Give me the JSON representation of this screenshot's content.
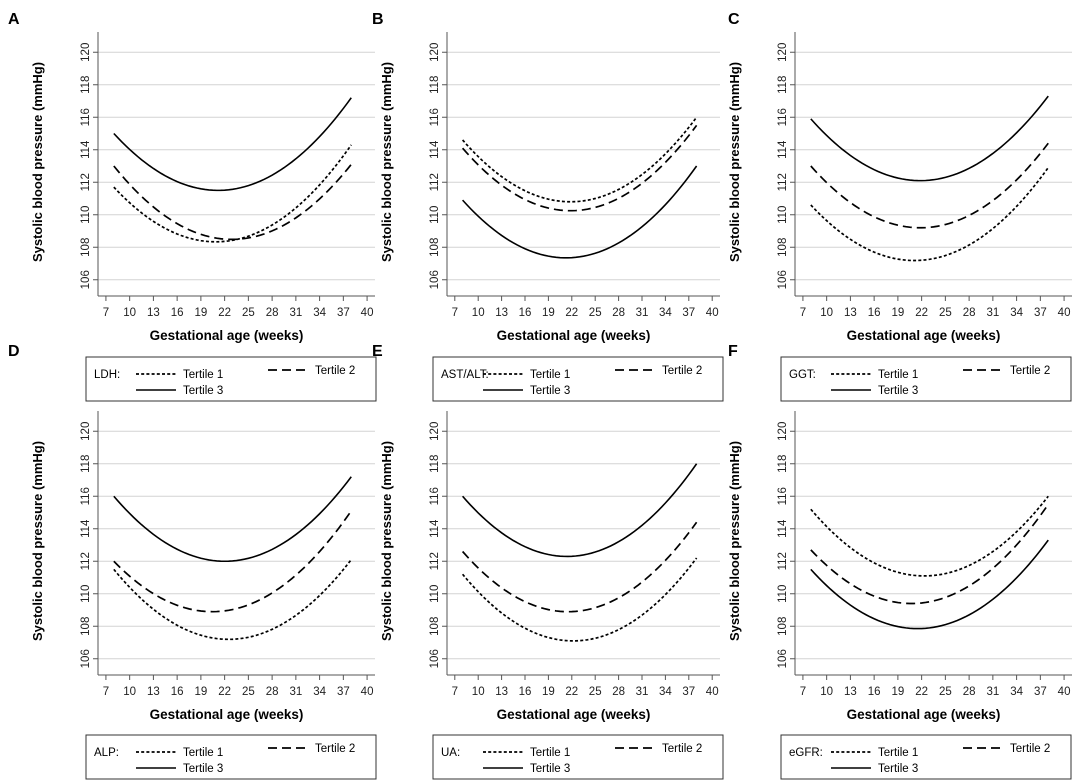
{
  "figure": {
    "ylabel": "Systolic blood pressure (mmHg)",
    "xlabel": "Gestational age (weeks)",
    "xticks": [
      7,
      10,
      13,
      16,
      19,
      22,
      25,
      28,
      31,
      34,
      37,
      40
    ],
    "yticks": [
      106,
      108,
      110,
      112,
      114,
      116,
      118,
      120
    ],
    "xlim": [
      6,
      41
    ],
    "ylim": [
      105,
      121
    ],
    "line_styles": {
      "Tertile 1": "dotted",
      "Tertile 2": "dashed",
      "Tertile 3": "solid"
    }
  },
  "chart_data": [
    {
      "type": "line",
      "panel": "A",
      "legend_title": "LDH:",
      "xlabel": "Gestational age (weeks)",
      "ylabel": "Systolic blood pressure (mmHg)",
      "series": [
        {
          "name": "Tertile 1",
          "style": "dotted",
          "x": [
            8,
            20,
            38
          ],
          "y": [
            111.7,
            108.35,
            114.3
          ]
        },
        {
          "name": "Tertile 2",
          "style": "dashed",
          "x": [
            8,
            22,
            38
          ],
          "y": [
            113.0,
            108.5,
            113.1
          ]
        },
        {
          "name": "Tertile 3",
          "style": "solid",
          "x": [
            8,
            21,
            38
          ],
          "y": [
            115.0,
            111.5,
            117.2
          ]
        }
      ]
    },
    {
      "type": "line",
      "panel": "B",
      "legend_title": "AST/ALT:",
      "xlabel": "Gestational age (weeks)",
      "ylabel": "Systolic blood pressure (mmHg)",
      "series": [
        {
          "name": "Tertile 1",
          "style": "dotted",
          "x": [
            8,
            22,
            38
          ],
          "y": [
            114.6,
            110.8,
            116.0
          ]
        },
        {
          "name": "Tertile 2",
          "style": "dashed",
          "x": [
            8,
            22,
            38
          ],
          "y": [
            114.1,
            110.25,
            115.5
          ]
        },
        {
          "name": "Tertile 3",
          "style": "solid",
          "x": [
            8,
            21,
            38
          ],
          "y": [
            110.9,
            107.35,
            113.0
          ]
        }
      ]
    },
    {
      "type": "line",
      "panel": "C",
      "legend_title": "GGT:",
      "xlabel": "Gestational age (weeks)",
      "ylabel": "Systolic blood pressure (mmHg)",
      "series": [
        {
          "name": "Tertile 1",
          "style": "dotted",
          "x": [
            8,
            22,
            38
          ],
          "y": [
            110.6,
            107.2,
            112.9
          ]
        },
        {
          "name": "Tertile 2",
          "style": "dashed",
          "x": [
            8,
            22,
            38
          ],
          "y": [
            113.0,
            109.2,
            114.4
          ]
        },
        {
          "name": "Tertile 3",
          "style": "solid",
          "x": [
            8,
            22,
            38
          ],
          "y": [
            115.9,
            112.1,
            117.3
          ]
        }
      ]
    },
    {
      "type": "line",
      "panel": "D",
      "legend_title": "ALP:",
      "xlabel": "Gestational age (weeks)",
      "ylabel": "Systolic blood pressure (mmHg)",
      "series": [
        {
          "name": "Tertile 1",
          "style": "dotted",
          "x": [
            8,
            22,
            38
          ],
          "y": [
            111.5,
            107.2,
            112.1
          ]
        },
        {
          "name": "Tertile 2",
          "style": "dashed",
          "x": [
            8,
            20,
            38
          ],
          "y": [
            112.0,
            108.9,
            115.1
          ]
        },
        {
          "name": "Tertile 3",
          "style": "solid",
          "x": [
            8,
            22,
            38
          ],
          "y": [
            116.0,
            112.0,
            117.2
          ]
        }
      ]
    },
    {
      "type": "line",
      "panel": "E",
      "legend_title": "UA:",
      "xlabel": "Gestational age (weeks)",
      "ylabel": "Systolic blood pressure (mmHg)",
      "series": [
        {
          "name": "Tertile 1",
          "style": "dotted",
          "x": [
            8,
            22,
            38
          ],
          "y": [
            111.2,
            107.1,
            112.2
          ]
        },
        {
          "name": "Tertile 2",
          "style": "dashed",
          "x": [
            8,
            22,
            38
          ],
          "y": [
            112.6,
            108.9,
            114.4
          ]
        },
        {
          "name": "Tertile 3",
          "style": "solid",
          "x": [
            8,
            21,
            38
          ],
          "y": [
            116.0,
            112.3,
            118.0
          ]
        }
      ]
    },
    {
      "type": "line",
      "panel": "F",
      "legend_title": "eGFR:",
      "xlabel": "Gestational age (weeks)",
      "ylabel": "Systolic blood pressure (mmHg)",
      "series": [
        {
          "name": "Tertile 1",
          "style": "dotted",
          "x": [
            8,
            22,
            38
          ],
          "y": [
            115.2,
            111.1,
            116.0
          ]
        },
        {
          "name": "Tertile 2",
          "style": "dashed",
          "x": [
            8,
            21,
            38
          ],
          "y": [
            112.7,
            109.4,
            115.5
          ]
        },
        {
          "name": "Tertile 3",
          "style": "solid",
          "x": [
            8,
            20,
            38
          ],
          "y": [
            111.5,
            107.9,
            113.3
          ]
        }
      ]
    }
  ]
}
